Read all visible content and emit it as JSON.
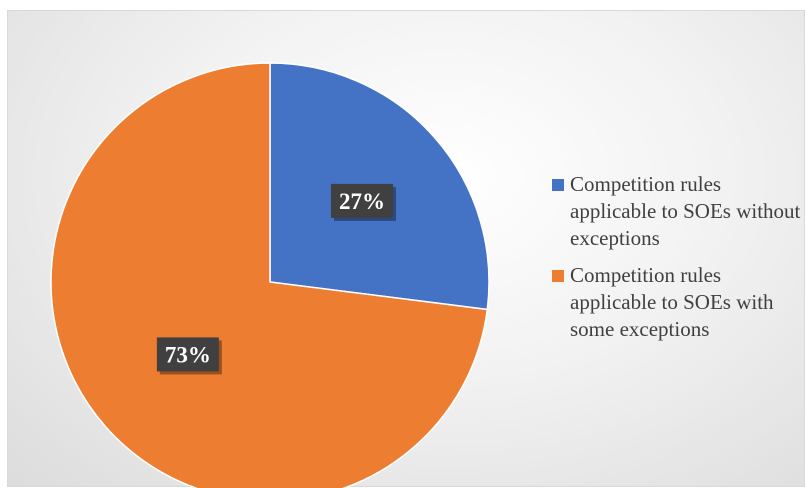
{
  "chart_data": {
    "type": "pie",
    "categories": [
      "Competition rules applicable to SOEs without exceptions",
      "Competition rules applicable to SOEs with some exceptions"
    ],
    "values": [
      27,
      73
    ],
    "data_labels": [
      "27%",
      "73%"
    ],
    "colors": [
      "#4472c4",
      "#ed7d31"
    ],
    "legend_position": "right"
  },
  "legend": {
    "items": [
      {
        "label": "Competition rules applicable to SOEs without exceptions",
        "color": "#4472c4"
      },
      {
        "label": "Competition rules applicable to SOEs with some exceptions",
        "color": "#ed7d31"
      }
    ]
  }
}
